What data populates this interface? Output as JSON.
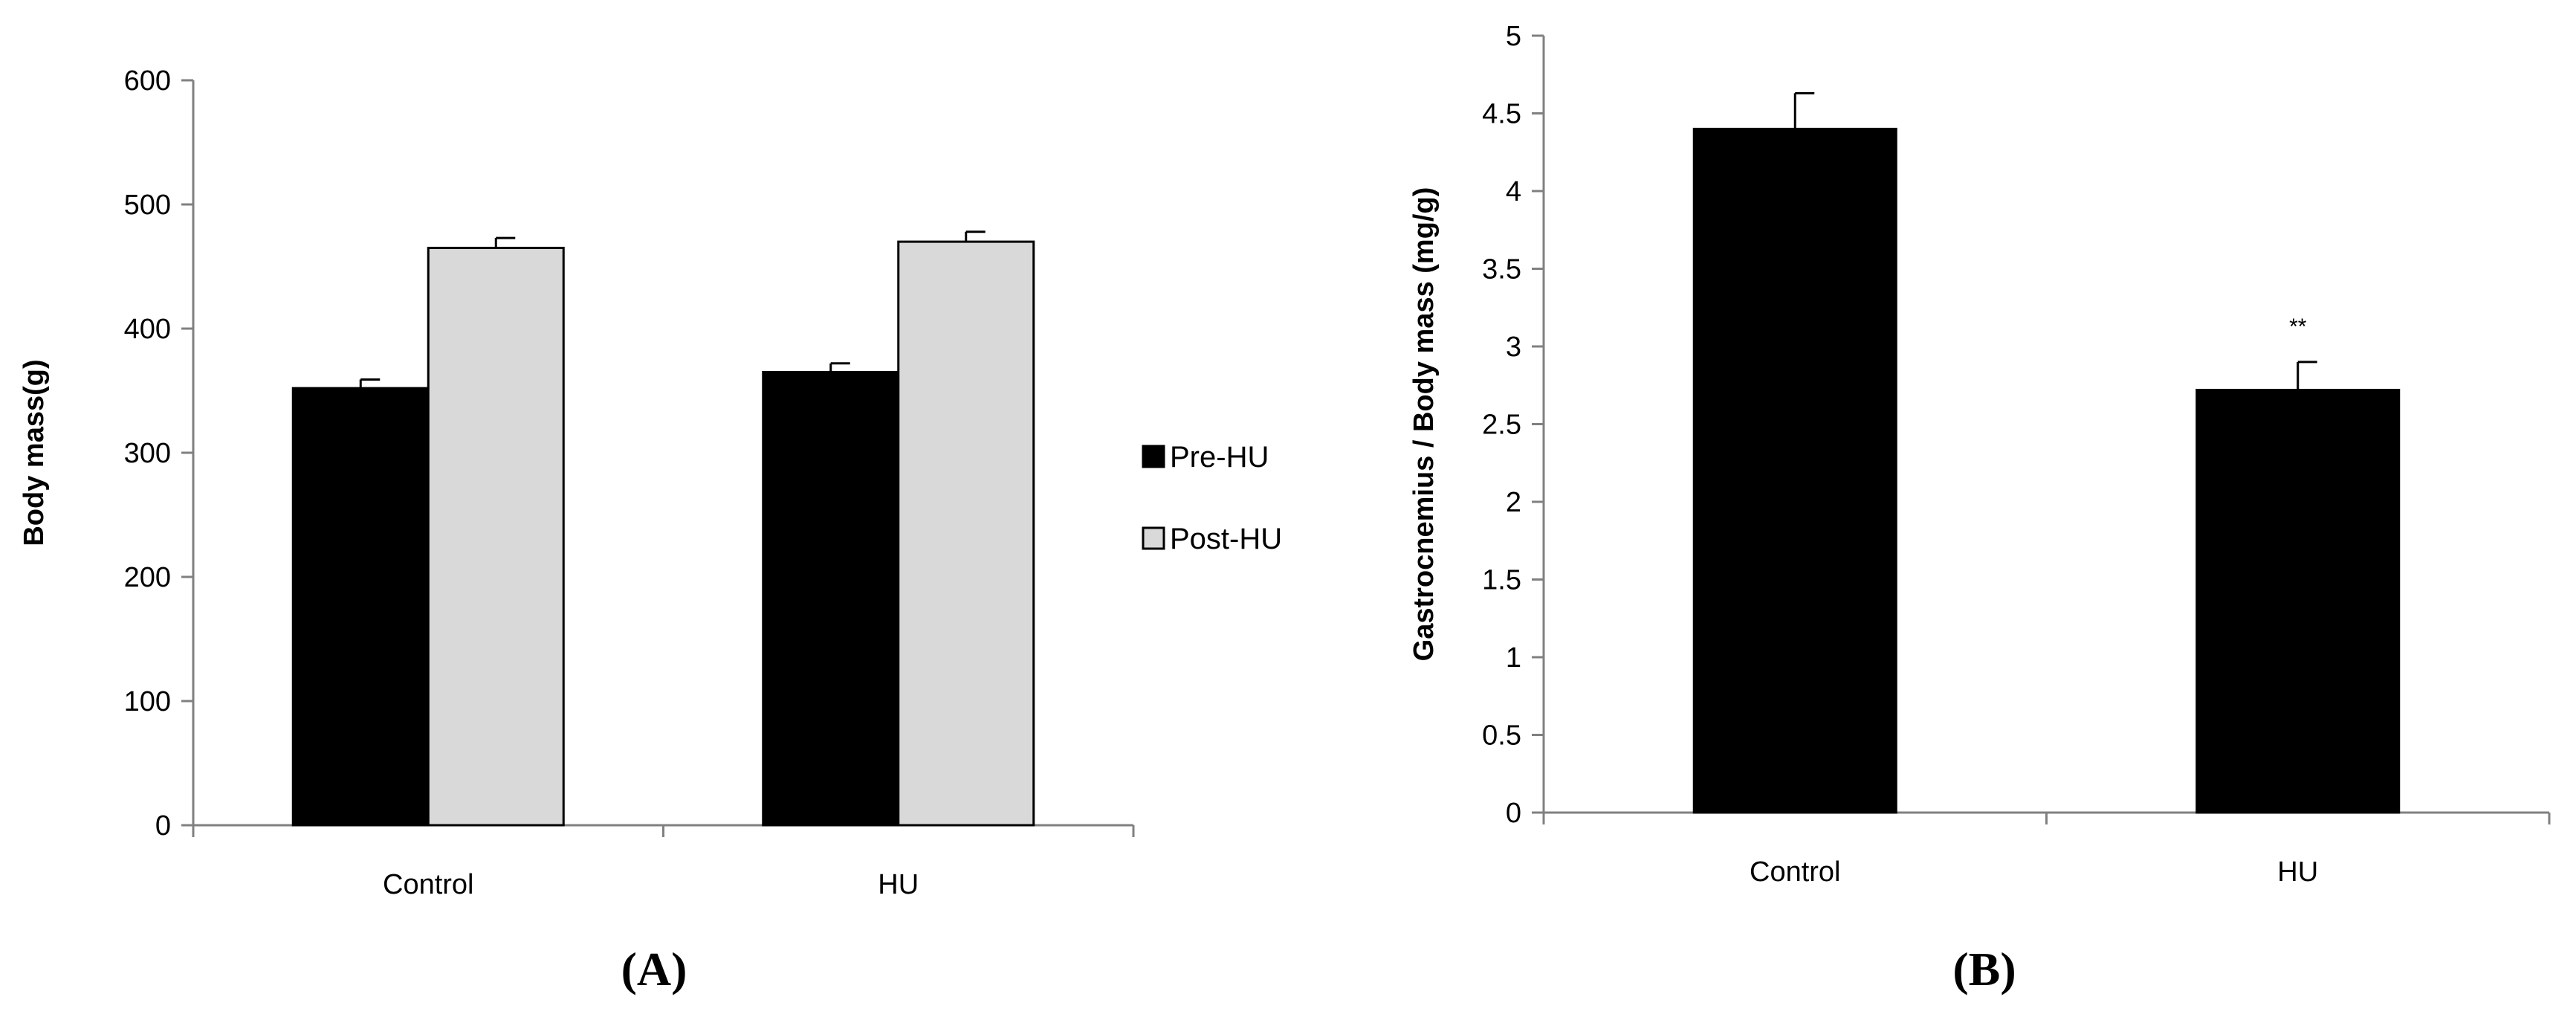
{
  "panel_labels": [
    "(A)",
    "(B)"
  ],
  "chart_data": [
    {
      "type": "bar",
      "panel": "(A)",
      "categories": [
        "Control",
        "HU"
      ],
      "series": [
        {
          "name": "Pre-HU",
          "color": "#000000",
          "values": [
            352,
            365
          ],
          "errors": [
            7,
            7
          ]
        },
        {
          "name": "Post-HU",
          "color": "#d9d9d9",
          "values": [
            465,
            470
          ],
          "errors": [
            8,
            8
          ]
        }
      ],
      "ylabel": "Body mass(g)",
      "ylim": [
        0,
        600
      ],
      "yticks": [
        0,
        100,
        200,
        300,
        400,
        500,
        600
      ],
      "legend": "right",
      "grid": false
    },
    {
      "type": "bar",
      "panel": "(B)",
      "categories": [
        "Control",
        "HU"
      ],
      "series": [
        {
          "color": "#000000",
          "values": [
            4.4,
            2.72
          ],
          "errors": [
            0.23,
            0.18
          ]
        }
      ],
      "ylabel": "Gastrocnemius / Body mass (mg/g)",
      "ylim": [
        0,
        5
      ],
      "yticks": [
        "0",
        "0.5",
        "1",
        "1.5",
        "2",
        "2.5",
        "3",
        "3.5",
        "4",
        "4.5",
        "5"
      ],
      "annotations": [
        {
          "category": "HU",
          "text": "**"
        }
      ],
      "legend": "none",
      "grid": false
    }
  ]
}
